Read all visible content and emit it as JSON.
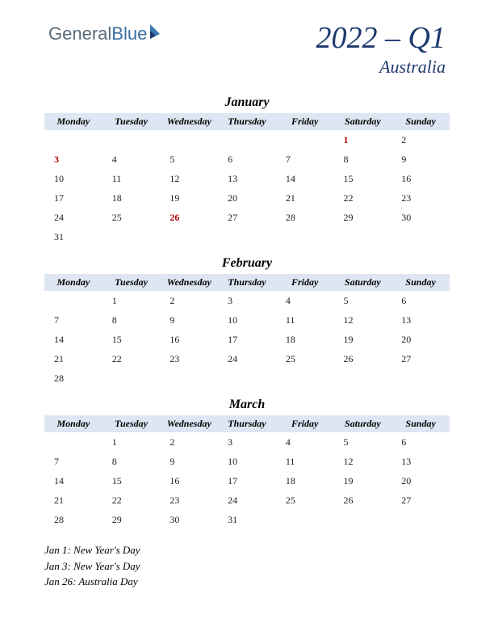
{
  "logo": {
    "part1": "General",
    "part2": "Blue"
  },
  "title": "2022 – Q1",
  "country": "Australia",
  "colors": {
    "header_bg": "#dde6f2",
    "title_color": "#1e3a6e",
    "holiday_color": "#b00000",
    "text_color": "#222222",
    "page_bg": "#ffffff"
  },
  "day_headers": [
    "Monday",
    "Tuesday",
    "Wednesday",
    "Thursday",
    "Friday",
    "Saturday",
    "Sunday"
  ],
  "months": [
    {
      "name": "January",
      "weeks": [
        [
          "",
          "",
          "",
          "",
          "",
          "1",
          "2"
        ],
        [
          "3",
          "4",
          "5",
          "6",
          "7",
          "8",
          "9"
        ],
        [
          "10",
          "11",
          "12",
          "13",
          "14",
          "15",
          "16"
        ],
        [
          "17",
          "18",
          "19",
          "20",
          "21",
          "22",
          "23"
        ],
        [
          "24",
          "25",
          "26",
          "27",
          "28",
          "29",
          "30"
        ],
        [
          "31",
          "",
          "",
          "",
          "",
          "",
          ""
        ]
      ],
      "holidays": [
        "1",
        "3",
        "26"
      ]
    },
    {
      "name": "February",
      "weeks": [
        [
          "",
          "1",
          "2",
          "3",
          "4",
          "5",
          "6"
        ],
        [
          "7",
          "8",
          "9",
          "10",
          "11",
          "12",
          "13"
        ],
        [
          "14",
          "15",
          "16",
          "17",
          "18",
          "19",
          "20"
        ],
        [
          "21",
          "22",
          "23",
          "24",
          "25",
          "26",
          "27"
        ],
        [
          "28",
          "",
          "",
          "",
          "",
          "",
          ""
        ]
      ],
      "holidays": []
    },
    {
      "name": "March",
      "weeks": [
        [
          "",
          "1",
          "2",
          "3",
          "4",
          "5",
          "6"
        ],
        [
          "7",
          "8",
          "9",
          "10",
          "11",
          "12",
          "13"
        ],
        [
          "14",
          "15",
          "16",
          "17",
          "18",
          "19",
          "20"
        ],
        [
          "21",
          "22",
          "23",
          "24",
          "25",
          "26",
          "27"
        ],
        [
          "28",
          "29",
          "30",
          "31",
          "",
          "",
          ""
        ]
      ],
      "holidays": []
    }
  ],
  "holiday_list": [
    "Jan 1: New Year's Day",
    "Jan 3: New Year's Day",
    "Jan 26: Australia Day"
  ]
}
